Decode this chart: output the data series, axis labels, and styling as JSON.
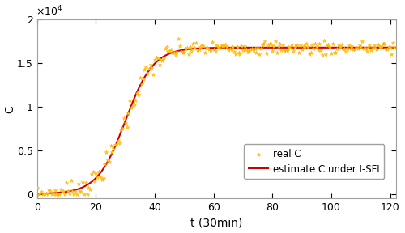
{
  "title": "",
  "xlabel": "t (30min)",
  "ylabel": "C",
  "xlim": [
    0,
    122
  ],
  "ylim": [
    -500,
    20000
  ],
  "yticks": [
    0,
    5000,
    10000,
    15000,
    20000
  ],
  "ytick_labels": [
    "0",
    "0.5",
    "1",
    "1.5",
    "2"
  ],
  "xticks": [
    0,
    20,
    40,
    60,
    80,
    100,
    120
  ],
  "N": 16800,
  "k": 0.21,
  "t0": 30,
  "noise_scale": 400,
  "line_color": "#cc0000",
  "scatter_color": "#FFD700",
  "scatter_edge_color": "#FFA500",
  "legend_scatter": "real C",
  "legend_line": "estimate C under I-SFI",
  "background_color": "#ffffff",
  "figsize": [
    5.0,
    2.88
  ],
  "dpi": 100
}
